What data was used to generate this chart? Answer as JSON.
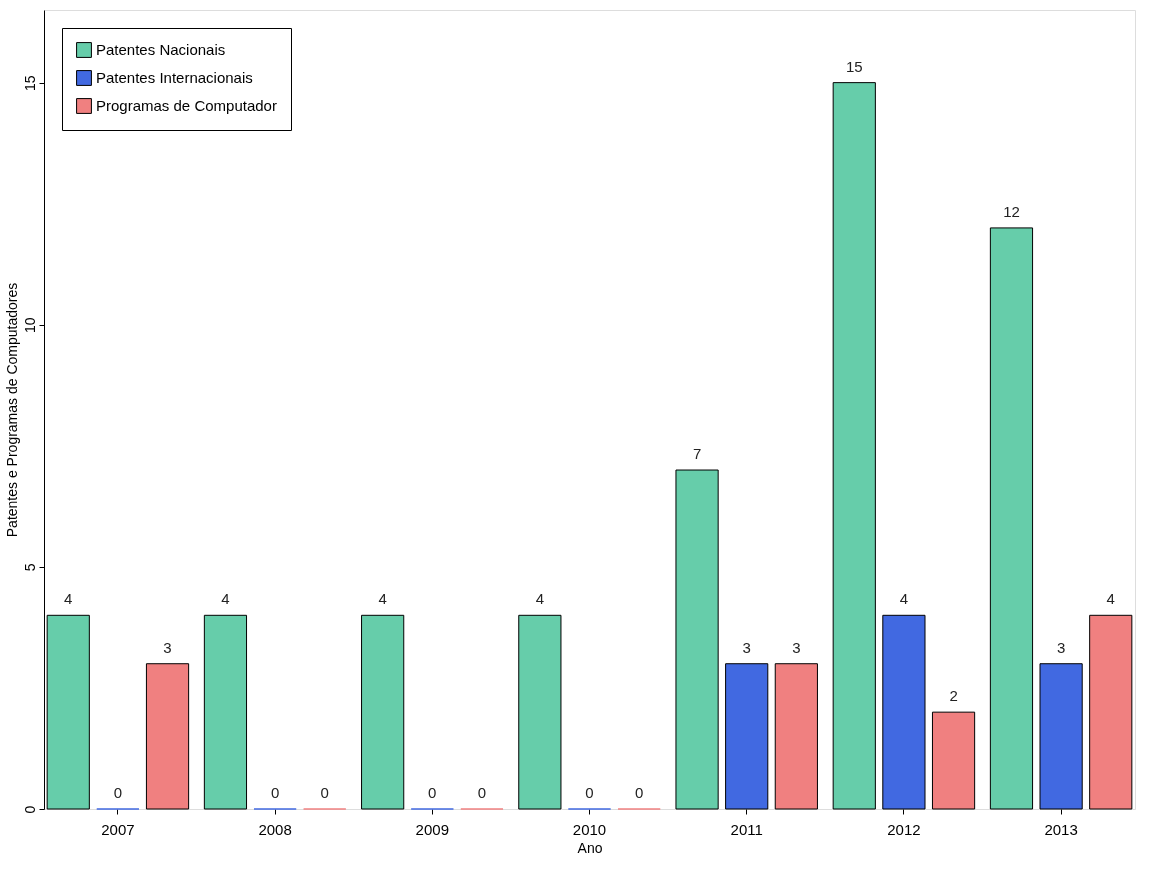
{
  "chart_data": {
    "type": "bar",
    "xlabel": "Ano",
    "ylabel": "Patentes e Programas de Computadores",
    "categories": [
      "2007",
      "2008",
      "2009",
      "2010",
      "2011",
      "2012",
      "2013"
    ],
    "series": [
      {
        "name": "Patentes Nacionais",
        "color": "#66cdaa",
        "values": [
          4,
          4,
          4,
          4,
          7,
          15,
          12
        ]
      },
      {
        "name": "Patentes Internacionais",
        "color": "#4169e1",
        "values": [
          0,
          0,
          0,
          0,
          3,
          4,
          3
        ]
      },
      {
        "name": "Programas de Computador",
        "color": "#f08080",
        "values": [
          3,
          0,
          0,
          0,
          3,
          2,
          4
        ]
      }
    ],
    "ylim": [
      0,
      16.5
    ],
    "yticks": [
      0,
      5,
      10,
      15
    ],
    "grid": false,
    "legend": "top left",
    "data_labels": true
  }
}
